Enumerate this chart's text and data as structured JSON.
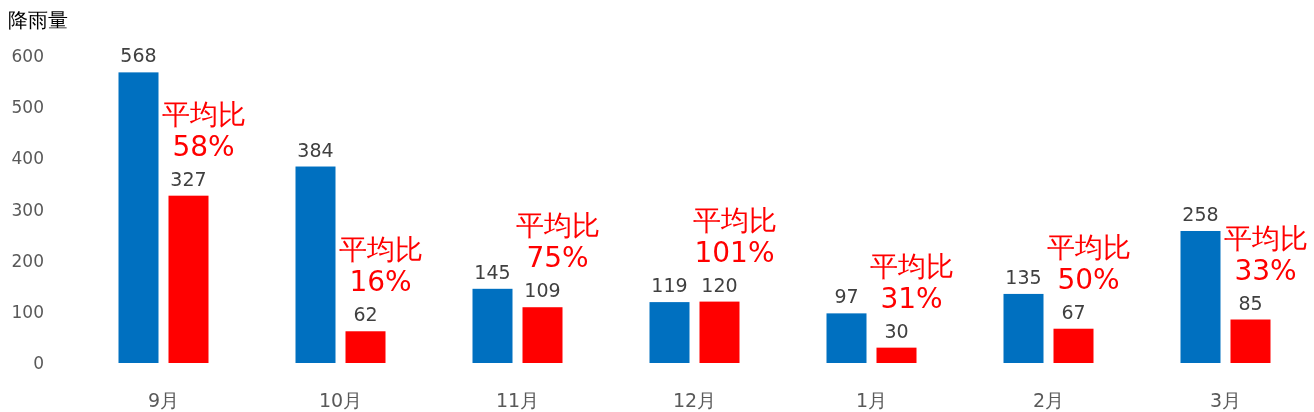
{
  "chart_data": {
    "type": "bar",
    "ylabel": "降雨量",
    "categories": [
      "9月",
      "10月",
      "11月",
      "12月",
      "1月",
      "2月",
      "3月"
    ],
    "series": [
      {
        "color": "#0070c0",
        "values": [
          568,
          384,
          145,
          119,
          97,
          135,
          258
        ]
      },
      {
        "color": "#ff0000",
        "values": [
          327,
          62,
          109,
          120,
          30,
          67,
          85
        ]
      }
    ],
    "ylim": [
      0,
      600
    ],
    "yticks": [
      0,
      100,
      200,
      300,
      400,
      500,
      600
    ],
    "data_labels": true,
    "annotations": [
      "平均比\n58%",
      "平均比\n16%",
      "平均比\n75%",
      "平均比\n101%",
      "平均比\n31%",
      "平均比\n50%",
      "平均比\n33%"
    ]
  }
}
